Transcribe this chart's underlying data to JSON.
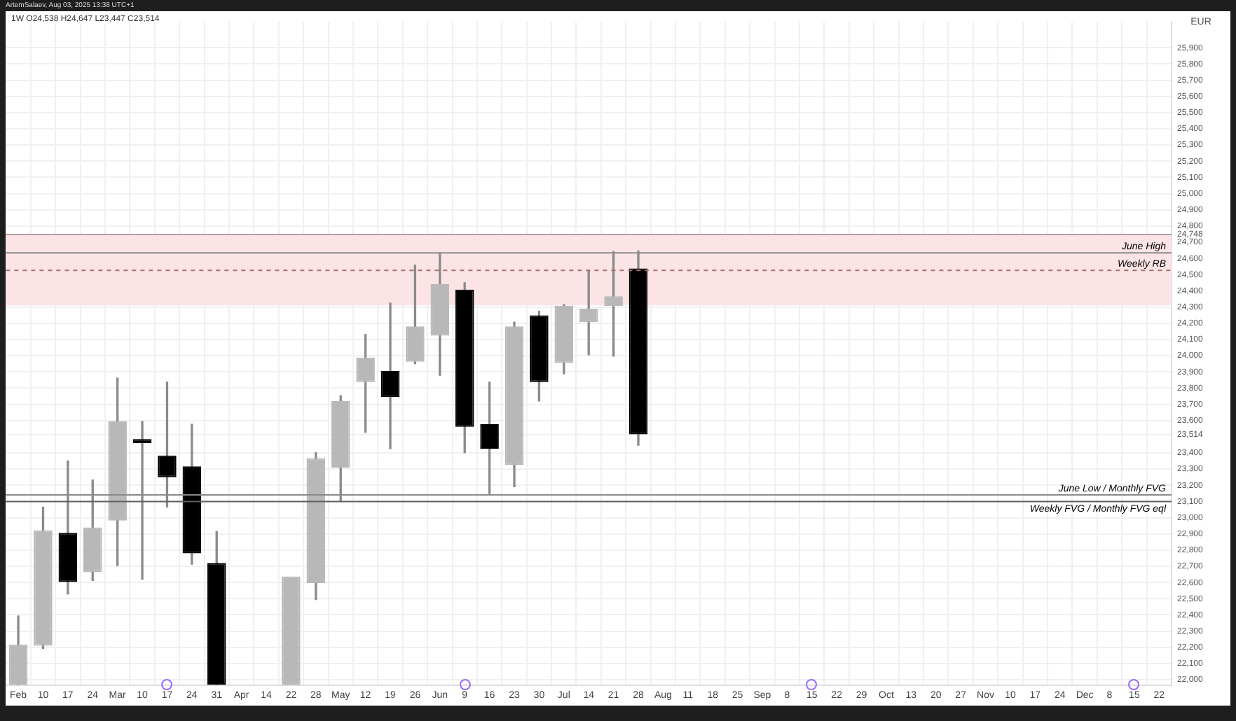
{
  "chart_data": {
    "type": "candlestick",
    "title": "1W  O24,538 H24,647 L23,447 C23,514",
    "subtitle": "ArtemSalaev, Aug 03, 2025 13:38 UTC+1",
    "ylabel": "EUR",
    "categories": [
      "Feb",
      "10",
      "17",
      "24",
      "Mar",
      "10",
      "17",
      "24",
      "31",
      "Apr",
      "14",
      "22",
      "28",
      "May",
      "12",
      "19",
      "26",
      "Jun",
      "9",
      "16",
      "23",
      "30",
      "Jul",
      "14",
      "21",
      "28",
      "Aug",
      "11",
      "18",
      "25",
      "Sep",
      "8",
      "15",
      "22",
      "29",
      "Oct",
      "13",
      "20",
      "27",
      "Nov",
      "10",
      "17",
      "24",
      "Dec",
      "8",
      "15",
      "22"
    ],
    "ohlc": [
      [
        21970,
        22394,
        21970,
        22218
      ],
      [
        22210,
        23066,
        22193,
        22923
      ],
      [
        22906,
        23351,
        22529,
        22604
      ],
      [
        22663,
        23233,
        22612,
        22940
      ],
      [
        22982,
        23862,
        22705,
        23594
      ],
      [
        23485,
        23594,
        22621,
        23460
      ],
      [
        23384,
        23837,
        23066,
        23250
      ],
      [
        23317,
        23577,
        22713,
        22780
      ],
      [
        22721,
        22915,
        21970,
        21970
      ],
      null,
      null,
      [
        21970,
        22638,
        21970,
        22638
      ],
      [
        22596,
        23401,
        22495,
        23368
      ],
      [
        23309,
        23753,
        23100,
        23720
      ],
      [
        23837,
        24131,
        23527,
        23988
      ],
      [
        23905,
        24324,
        23426,
        23745
      ],
      [
        23963,
        24559,
        23950,
        24181
      ],
      [
        24123,
        24634,
        23879,
        24441
      ],
      [
        24408,
        24450,
        23401,
        23561
      ],
      [
        23577,
        23837,
        23141,
        23426
      ],
      [
        23326,
        24207,
        23191,
        24181
      ],
      [
        24249,
        24274,
        23720,
        23837
      ],
      [
        23955,
        24315,
        23888,
        24307
      ],
      [
        24207,
        24525,
        24005,
        24290
      ],
      [
        24307,
        24642,
        23997,
        24366
      ],
      [
        24538,
        24647,
        23447,
        23514
      ],
      null,
      null,
      null,
      null,
      null,
      null,
      null,
      null,
      null,
      null,
      null,
      null,
      null,
      null,
      null,
      null,
      null,
      null,
      null,
      null,
      null
    ],
    "colors": [
      "#b8b8b8",
      "#b8b8b8",
      "#000000",
      "#b8b8b8",
      "#b8b8b8",
      "#000000",
      "#000000",
      "#000000",
      "#000000",
      null,
      null,
      "#b8b8b8",
      "#b8b8b8",
      "#b8b8b8",
      "#b8b8b8",
      "#000000",
      "#b8b8b8",
      "#b8b8b8",
      "#000000",
      "#000000",
      "#b8b8b8",
      "#000000",
      "#b8b8b8",
      "#b8b8b8",
      "#b8b8b8",
      "#000000",
      null,
      null,
      null,
      null,
      null,
      null,
      null,
      null,
      null,
      null,
      null,
      null,
      null,
      null,
      null,
      null,
      null,
      null,
      null,
      null,
      null
    ],
    "ylim": [
      21965,
      26060
    ],
    "yticks": [
      {
        "value": 22000,
        "label": "22,000"
      },
      {
        "value": 22100,
        "label": "22,100"
      },
      {
        "value": 22200,
        "label": "22,200"
      },
      {
        "value": 22300,
        "label": "22,300"
      },
      {
        "value": 22400,
        "label": "22,400"
      },
      {
        "value": 22500,
        "label": "22,500"
      },
      {
        "value": 22600,
        "label": "22,600"
      },
      {
        "value": 22700,
        "label": "22,700"
      },
      {
        "value": 22800,
        "label": "22,800"
      },
      {
        "value": 22900,
        "label": "22,900"
      },
      {
        "value": 23000,
        "label": "23,000"
      },
      {
        "value": 23100,
        "label": "23,100"
      },
      {
        "value": 23200,
        "label": "23,200"
      },
      {
        "value": 23300,
        "label": "23,300"
      },
      {
        "value": 23400,
        "label": "23,400"
      },
      {
        "value": 23514,
        "label": "23,514"
      },
      {
        "value": 23600,
        "label": "23,600"
      },
      {
        "value": 23700,
        "label": "23,700"
      },
      {
        "value": 23800,
        "label": "23,800"
      },
      {
        "value": 23900,
        "label": "23,900"
      },
      {
        "value": 24000,
        "label": "24,000"
      },
      {
        "value": 24100,
        "label": "24,100"
      },
      {
        "value": 24200,
        "label": "24,200"
      },
      {
        "value": 24300,
        "label": "24,300"
      },
      {
        "value": 24400,
        "label": "24,400"
      },
      {
        "value": 24500,
        "label": "24,500"
      },
      {
        "value": 24600,
        "label": "24,600"
      },
      {
        "value": 24700,
        "label": "24,700"
      },
      {
        "value": 24748,
        "label": "24,748"
      },
      {
        "value": 24800,
        "label": "24,800"
      },
      {
        "value": 24900,
        "label": "24,900"
      },
      {
        "value": 25000,
        "label": "25,000"
      },
      {
        "value": 25100,
        "label": "25,100"
      },
      {
        "value": 25200,
        "label": "25,200"
      },
      {
        "value": 25300,
        "label": "25,300"
      },
      {
        "value": 25400,
        "label": "25,400"
      },
      {
        "value": 25500,
        "label": "25,500"
      },
      {
        "value": 25600,
        "label": "25,600"
      },
      {
        "value": 25700,
        "label": "25,700"
      },
      {
        "value": 25800,
        "label": "25,800"
      },
      {
        "value": 25900,
        "label": "25,900"
      }
    ],
    "bands": [
      {
        "axis": "y",
        "from": 24310,
        "to": 24748,
        "color": "#fce4e6"
      }
    ],
    "ref_lines": [
      {
        "axis": "y",
        "value": 24748,
        "color": "#b0a0a0"
      },
      {
        "axis": "y",
        "value": 24634,
        "label": "June High",
        "color": "#8a8a8a"
      },
      {
        "axis": "y",
        "value": 24526,
        "label": "Weekly RB",
        "color": "#a07070",
        "line_style": "dashed"
      },
      {
        "axis": "y",
        "value": 23141,
        "label": "June Low / Monthly FVG",
        "color": "#8a8a8a"
      },
      {
        "axis": "y",
        "value": 23100,
        "label": "Weekly FVG / Monthly FVG eql",
        "color": "#606060"
      }
    ],
    "grid": true,
    "legend": false
  }
}
